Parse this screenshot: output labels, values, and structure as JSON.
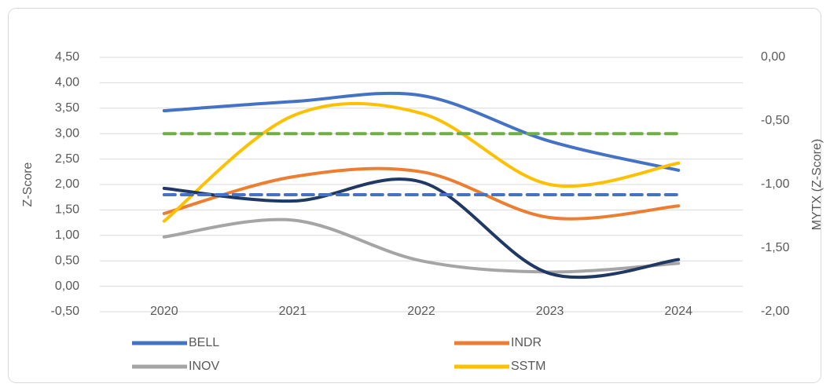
{
  "chart_data": {
    "type": "line",
    "categories": [
      "2020",
      "2021",
      "2022",
      "2023",
      "2024"
    ],
    "y_label": "Z-Score",
    "y2_label": "MYTX (Z-Score)",
    "ylim": [
      -0.5,
      4.5
    ],
    "yticks": [
      {
        "value": -0.5,
        "label": "-0,50"
      },
      {
        "value": 0,
        "label": "0,00"
      },
      {
        "value": 0.5,
        "label": "0,50"
      },
      {
        "value": 1,
        "label": "1,00"
      },
      {
        "value": 1.5,
        "label": "1,50"
      },
      {
        "value": 2,
        "label": "2,00"
      },
      {
        "value": 2.5,
        "label": "2,50"
      },
      {
        "value": 3,
        "label": "3,00"
      },
      {
        "value": 3.5,
        "label": "3,50"
      },
      {
        "value": 4,
        "label": "4,00"
      },
      {
        "value": 4.5,
        "label": "4,50"
      }
    ],
    "y2lim": [
      -2,
      0
    ],
    "y2ticks": [
      {
        "value": -2,
        "label": "-2,00"
      },
      {
        "value": -1.5,
        "label": "-1,50"
      },
      {
        "value": -1,
        "label": "-1,00"
      },
      {
        "value": -0.5,
        "label": "-0,50"
      },
      {
        "value": 0,
        "label": "0,00"
      }
    ],
    "grid": true,
    "legend": "bottom",
    "smooth": true,
    "series": [
      {
        "name": "BELL",
        "color": "#4472c4",
        "values": [
          3.45,
          3.63,
          3.75,
          2.85,
          2.28
        ]
      },
      {
        "name": "INDR",
        "color": "#ed7d31",
        "values": [
          1.43,
          2.15,
          2.25,
          1.35,
          1.58
        ]
      },
      {
        "name": "INOV",
        "color": "#a5a5a5",
        "values": [
          0.97,
          1.3,
          0.5,
          0.28,
          0.45
        ]
      },
      {
        "name": "SSTM",
        "color": "#ffc000",
        "values": [
          1.28,
          3.35,
          3.4,
          2.0,
          2.42
        ]
      },
      {
        "color": "#203864",
        "axis": "y2",
        "values": [
          -1.03,
          -1.13,
          -0.98,
          -1.7,
          -1.59
        ]
      },
      {
        "color": "#70ad47",
        "dashed": true,
        "values": [
          3.0,
          3.0,
          3.0,
          3.0,
          3.0
        ]
      },
      {
        "color": "#4472c4",
        "dashed": true,
        "values": [
          1.8,
          1.8,
          1.8,
          1.8,
          1.8
        ]
      }
    ]
  }
}
